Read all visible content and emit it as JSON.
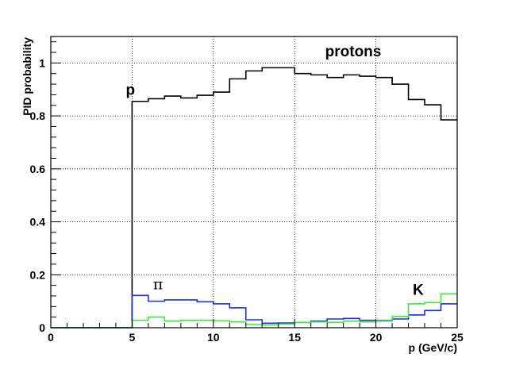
{
  "chart_data": {
    "type": "line",
    "step": true,
    "title": "protons",
    "xlabel": "p (GeV/c)",
    "ylabel": "PID probability",
    "xlim": [
      0,
      25
    ],
    "ylim": [
      0,
      1.1
    ],
    "grid": true,
    "xticks": [
      0,
      5,
      10,
      15,
      20,
      25
    ],
    "xtick_labels": [
      "0",
      "5",
      "10",
      "15",
      "20",
      "25"
    ],
    "yticks": [
      0,
      0.2,
      0.4,
      0.6,
      0.8,
      1
    ],
    "ytick_labels": [
      "0",
      "0.2",
      "0.4",
      "0.6",
      "0.8",
      "1"
    ],
    "bin_edges": [
      0,
      1,
      2,
      3,
      4,
      5,
      6,
      7,
      8,
      9,
      10,
      11,
      12,
      13,
      14,
      15,
      16,
      17,
      18,
      19,
      20,
      21,
      22,
      23,
      24,
      25
    ],
    "annotations": [
      {
        "text": "p",
        "x": 4.9,
        "y": 0.88,
        "series": "black"
      },
      {
        "text": "π",
        "x": 6.6,
        "y": 0.145,
        "series": "blue"
      },
      {
        "text": "K",
        "x": 22.6,
        "y": 0.125,
        "series": "green"
      }
    ],
    "series": [
      {
        "color": "#000000",
        "values": [
          0,
          0,
          0,
          0,
          0,
          0.855,
          0.865,
          0.875,
          0.868,
          0.878,
          0.89,
          0.94,
          0.97,
          0.982,
          0.982,
          0.96,
          0.955,
          0.945,
          0.955,
          0.95,
          0.945,
          0.92,
          0.862,
          0.842,
          0.785
        ]
      },
      {
        "color": "#1a2ee6",
        "values": [
          0,
          0,
          0,
          0,
          0,
          0.122,
          0.1,
          0.105,
          0.105,
          0.098,
          0.09,
          0.075,
          0.03,
          0.017,
          0.018,
          0.02,
          0.025,
          0.033,
          0.035,
          0.028,
          0.026,
          0.033,
          0.048,
          0.065,
          0.09
        ]
      },
      {
        "color": "#3ee83e",
        "values": [
          0,
          0,
          0,
          0,
          0,
          0.028,
          0.04,
          0.025,
          0.028,
          0.028,
          0.026,
          0.022,
          0.012,
          0.01,
          0.014,
          0.02,
          0.022,
          0.02,
          0.025,
          0.022,
          0.028,
          0.042,
          0.09,
          0.095,
          0.128
        ]
      }
    ]
  }
}
